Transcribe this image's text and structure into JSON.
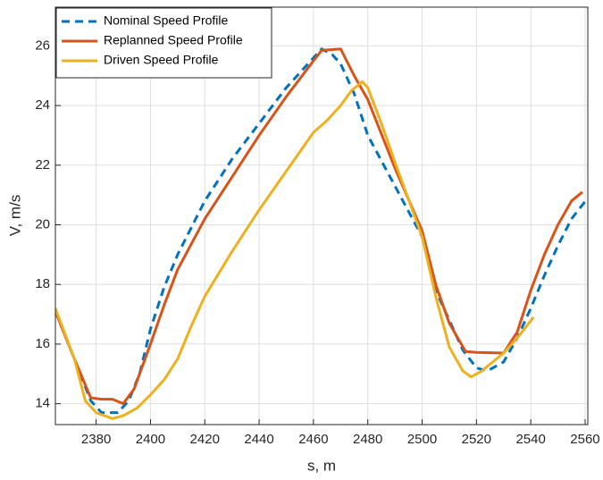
{
  "chart_data": {
    "type": "line",
    "xlabel": "s, m",
    "ylabel": "V, m/s",
    "xlim": [
      2365,
      2561
    ],
    "ylim": [
      13.3,
      27.3
    ],
    "xticks": [
      2380,
      2400,
      2420,
      2440,
      2460,
      2480,
      2500,
      2520,
      2540,
      2560
    ],
    "yticks": [
      14,
      16,
      18,
      20,
      22,
      24,
      26
    ],
    "grid": true,
    "legend": "top-left",
    "series": [
      {
        "name": "Nominal Speed Profile",
        "color": "#0072bd",
        "style": "dashed",
        "x": [
          2365,
          2372,
          2378,
          2382,
          2388,
          2392,
          2396,
          2400,
          2405,
          2410,
          2420,
          2430,
          2440,
          2450,
          2460,
          2463,
          2467,
          2470,
          2475,
          2480,
          2490,
          2500,
          2505,
          2510,
          2515,
          2520,
          2524,
          2530,
          2535,
          2540,
          2545,
          2550,
          2555,
          2561
        ],
        "values": [
          17.1,
          15.5,
          14.1,
          13.7,
          13.7,
          14.1,
          15,
          16.5,
          17.9,
          19,
          20.8,
          22.2,
          23.4,
          24.6,
          25.6,
          25.9,
          25.7,
          25.4,
          24.4,
          23.0,
          21.3,
          19.6,
          17.8,
          16.8,
          15.8,
          15.2,
          15.1,
          15.4,
          16.2,
          17.2,
          18.3,
          19.3,
          20.2,
          20.9
        ]
      },
      {
        "name": "Replanned Speed Profile",
        "color": "#d95319",
        "style": "solid",
        "x": [
          2365,
          2372,
          2378,
          2382,
          2386,
          2390,
          2394,
          2400,
          2405,
          2410,
          2420,
          2430,
          2440,
          2450,
          2460,
          2463,
          2470,
          2475,
          2480,
          2490,
          2500,
          2505,
          2510,
          2516,
          2520,
          2530,
          2535,
          2540,
          2545,
          2550,
          2555,
          2559
        ],
        "values": [
          17.1,
          15.5,
          14.2,
          14.15,
          14.15,
          14.0,
          14.5,
          16.0,
          17.3,
          18.5,
          20.2,
          21.6,
          23.0,
          24.3,
          25.5,
          25.85,
          25.9,
          25.0,
          24.2,
          21.9,
          19.8,
          18,
          16.7,
          15.75,
          15.72,
          15.7,
          16.4,
          17.8,
          19,
          20,
          20.8,
          21.1
        ]
      },
      {
        "name": "Driven Speed Profile",
        "color": "#edb120",
        "style": "solid",
        "x": [
          2365,
          2372,
          2376,
          2380,
          2386,
          2390,
          2395,
          2400,
          2405,
          2410,
          2415,
          2420,
          2430,
          2440,
          2450,
          2460,
          2465,
          2470,
          2474,
          2478,
          2480,
          2485,
          2490,
          2500,
          2505,
          2510,
          2515,
          2518,
          2522,
          2526,
          2530,
          2535,
          2541
        ],
        "values": [
          17.2,
          15.5,
          14.1,
          13.7,
          13.5,
          13.6,
          13.85,
          14.3,
          14.8,
          15.5,
          16.6,
          17.6,
          19.1,
          20.5,
          21.8,
          23.1,
          23.5,
          24.0,
          24.5,
          24.8,
          24.6,
          23.4,
          22.1,
          19.6,
          17.6,
          15.9,
          15.1,
          14.9,
          15.1,
          15.4,
          15.7,
          16.2,
          16.9
        ]
      }
    ]
  }
}
